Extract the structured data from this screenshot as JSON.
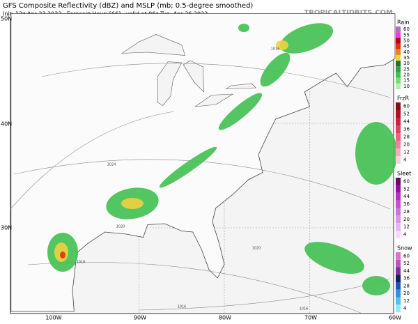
{
  "header": {
    "title": "GFS Composite Reflectivity (dBZ) and MSLP (mb; 0.5-degree smoothed)",
    "subtitle": "Init: 12z Apr 23 2022   Forecast Hour: [66]   valid at 06z Tue, Apr 26 2022",
    "site": "TROPICALTIDBITS.COM"
  },
  "map": {
    "lat_labels": [
      "50N",
      "40N",
      "30N"
    ],
    "lon_labels": [
      "100W",
      "90W",
      "80W",
      "70W",
      "60W"
    ],
    "isobar_labels": [
      "1016",
      "1024",
      "1020",
      "1016",
      "1020",
      "1016",
      "1016"
    ]
  },
  "legend": [
    {
      "title": "Rain",
      "labels": [
        "60",
        "55",
        "50",
        "45",
        "40",
        "35",
        "30",
        "25",
        "20",
        "15",
        "10"
      ],
      "colors": [
        "#b070c0",
        "#e040e0",
        "#c00000",
        "#e03010",
        "#f08020",
        "#f0d040",
        "#207030",
        "#30a040",
        "#40c050",
        "#70e070",
        "#b0f0b0"
      ]
    },
    {
      "title": "FrzR",
      "labels": [
        "60",
        "52",
        "44",
        "36",
        "28",
        "20",
        "12",
        "4"
      ],
      "colors": [
        "#801010",
        "#b01020",
        "#d02040",
        "#e04060",
        "#f06080",
        "#f080a0",
        "#f8a8c0",
        "#fcd0e0"
      ]
    },
    {
      "title": "Sleet",
      "labels": [
        "60",
        "52",
        "44",
        "36",
        "28",
        "20",
        "12",
        "4"
      ],
      "colors": [
        "#700070",
        "#9010a0",
        "#b030c0",
        "#c050d0",
        "#d070e0",
        "#e090f0",
        "#eab0f8",
        "#f4d8fc"
      ]
    },
    {
      "title": "Snow",
      "labels": [
        "60",
        "52",
        "44",
        "36",
        "28",
        "20",
        "12",
        "4"
      ],
      "colors": [
        "#e070d0",
        "#c050c0",
        "#8030a0",
        "#102060",
        "#2050b0",
        "#3090e0",
        "#50c0f0",
        "#90e8f8"
      ]
    }
  ]
}
